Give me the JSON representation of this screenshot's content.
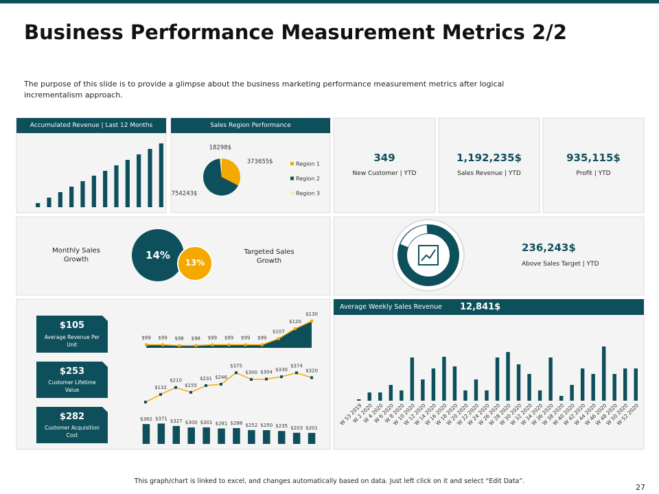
{
  "title": "Business Performance Measurement Metrics 2/2",
  "description": "The purpose of this slide is to provide a glimpse about the business marketing performance measurement metrics after logical incrementalism approach.",
  "footer_note": "This graph/chart is linked to excel, and changes automatically based on data. Just left click on it and select “Edit Data”.",
  "page_number": "27",
  "kpis": [
    {
      "value": "349",
      "label": "New Customer | YTD"
    },
    {
      "value": "1,192,235$",
      "label": "Sales Revenue | YTD"
    },
    {
      "value": "935,115$",
      "label": "Profit | YTD"
    }
  ],
  "growth": {
    "monthly": {
      "label": "Monthly Sales Growth",
      "value": "14%"
    },
    "targeted": {
      "label": "Targeted Sales Growth",
      "value": "13%"
    }
  },
  "target": {
    "value": "236,243$",
    "label": "Above Sales Target | YTD"
  },
  "unit_cards": [
    {
      "value": "$105",
      "label": "Average Revenue Per Unit"
    },
    {
      "value": "$253",
      "label": "Customer Lifetime Value"
    },
    {
      "value": "$282",
      "label": "Customer Acquisition Cost"
    }
  ],
  "chart_data": [
    {
      "type": "bar",
      "title": "Accumulated Revenue | Last 12 Months",
      "color": "#0e4f5c",
      "values": [
        6,
        14,
        22,
        30,
        38,
        46,
        53,
        61,
        69,
        77,
        85,
        93
      ],
      "ylim": [
        0,
        100
      ]
    },
    {
      "type": "pie",
      "title": "Sales Region Performance",
      "categories": [
        "Region 1",
        "Region 2",
        "Region 3"
      ],
      "values": [
        373655,
        754243,
        18298
      ],
      "value_labels": [
        "373655$",
        "754243$",
        "18298$"
      ],
      "colors": [
        "#f5a800",
        "#0e4f5c",
        "#fde7b0"
      ]
    },
    {
      "type": "line",
      "area": true,
      "color": "#f5a800",
      "area_color": "#0e4f5c",
      "marker_color": "#f5a800",
      "values": [
        99,
        99,
        98,
        98,
        99,
        99,
        99,
        99,
        107,
        120,
        130
      ],
      "value_labels": [
        "$99",
        "$99",
        "$98",
        "$98",
        "$99",
        "$99",
        "$99",
        "$99",
        "$107",
        "$120",
        "$130"
      ],
      "ylim": [
        95,
        130
      ]
    },
    {
      "type": "line",
      "area": false,
      "color": "#f5a800",
      "marker_color": "#0e4f5c",
      "values": [
        46,
        132,
        210,
        155,
        231,
        246,
        375,
        300,
        304,
        330,
        374,
        320
      ],
      "value_labels": [
        null,
        "$132",
        "$210",
        "$155",
        "$231",
        "$246",
        "$375",
        "$300",
        "$304",
        "$330",
        "$374",
        "$320"
      ],
      "ylim": [
        0,
        400
      ]
    },
    {
      "type": "bar",
      "color": "#0e4f5c",
      "values": [
        362,
        371,
        327,
        300,
        301,
        281,
        288,
        252,
        250,
        235,
        203,
        201
      ],
      "value_labels": [
        "$362",
        "$371",
        "$327",
        "$300",
        "$301",
        "$281",
        "$288",
        "$252",
        "$250",
        "$235",
        "$203",
        "$201"
      ],
      "ylim": [
        0,
        400
      ]
    },
    {
      "type": "bar",
      "title": "Average Weekly Sales Revenue",
      "annotation": "12,841$",
      "color": "#0e4f5c",
      "categories": [
        "W 53 2019",
        "W 2 2020",
        "W 4 2020",
        "W 6 2020",
        "W 8 2020",
        "W 10 2020",
        "W 12 2020",
        "W 14 2020",
        "W 16 2020",
        "W 18 2020",
        "W 20 2020",
        "W 22 2020",
        "W 24 2020",
        "W 26 2020",
        "W 28 2020",
        "W 30 2020",
        "W 32 2020",
        "W 34 2020",
        "W 36 2020",
        "W 38 2020",
        "W 40 2020",
        "W 42 2020",
        "W 44 2020",
        "W 46 2020",
        "W 48 2020",
        "W 50 2020",
        "W 52 2020"
      ],
      "values": [
        2,
        12,
        12,
        23,
        15,
        63,
        31,
        47,
        64,
        50,
        15,
        31,
        15,
        63,
        71,
        53,
        39,
        15,
        63,
        7,
        23,
        47,
        39,
        79,
        39,
        47,
        47
      ],
      "ylim": [
        0,
        100
      ]
    }
  ]
}
